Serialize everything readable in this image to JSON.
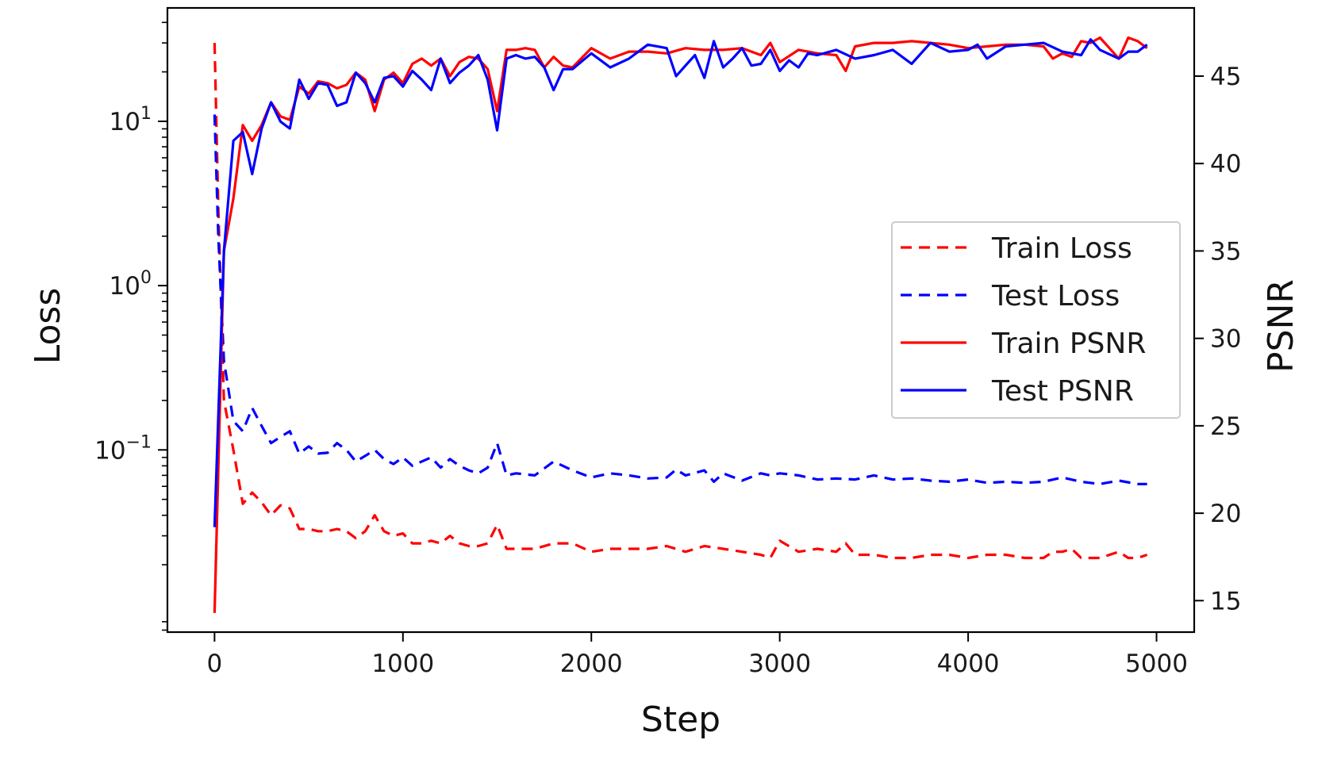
{
  "chart_data": {
    "type": "line",
    "title": "",
    "xlabel": "Step",
    "ylabel_left": "Loss",
    "ylabel_right": "PSNR",
    "xlim": [
      -250,
      5200
    ],
    "xticks": [
      0,
      1000,
      2000,
      3000,
      4000,
      5000
    ],
    "xtick_labels": [
      "0",
      "1000",
      "2000",
      "3000",
      "4000",
      "5000"
    ],
    "y_left_scale": "log",
    "y_left_lim": [
      0.00778,
      49.0
    ],
    "y_left_ticks": [
      0.1,
      1,
      10
    ],
    "y_left_tick_labels": [
      {
        "base": "10",
        "exp": "−1"
      },
      {
        "base": "10",
        "exp": "0"
      },
      {
        "base": "10",
        "exp": "1"
      }
    ],
    "y_right_lim": [
      13.2,
      48.9
    ],
    "y_right_ticks": [
      15,
      20,
      25,
      30,
      35,
      40,
      45
    ],
    "y_right_tick_labels": [
      "15",
      "20",
      "25",
      "30",
      "35",
      "40",
      "45"
    ],
    "grid": false,
    "legend_position": "center-right",
    "series": [
      {
        "name": "Train Loss",
        "axis": "left",
        "style": "dashed",
        "color": "#ff0000",
        "x": [
          0,
          20,
          50,
          100,
          150,
          200,
          250,
          300,
          350,
          400,
          450,
          500,
          550,
          600,
          650,
          700,
          750,
          800,
          850,
          900,
          950,
          1000,
          1050,
          1100,
          1150,
          1200,
          1250,
          1300,
          1350,
          1400,
          1450,
          1500,
          1550,
          1600,
          1700,
          1800,
          1900,
          2000,
          2100,
          2200,
          2300,
          2400,
          2500,
          2600,
          2700,
          2800,
          2900,
          2950,
          3000,
          3100,
          3200,
          3300,
          3350,
          3400,
          3500,
          3600,
          3700,
          3800,
          3900,
          4000,
          4100,
          4200,
          4300,
          4400,
          4450,
          4500,
          4550,
          4600,
          4700,
          4800,
          4850,
          4900,
          4950
        ],
        "y": [
          30,
          3.0,
          0.2,
          0.1,
          0.047,
          0.055,
          0.048,
          0.04,
          0.046,
          0.044,
          0.033,
          0.033,
          0.032,
          0.032,
          0.033,
          0.032,
          0.029,
          0.032,
          0.04,
          0.032,
          0.03,
          0.031,
          0.027,
          0.027,
          0.028,
          0.027,
          0.03,
          0.027,
          0.026,
          0.026,
          0.027,
          0.035,
          0.025,
          0.025,
          0.025,
          0.027,
          0.027,
          0.024,
          0.025,
          0.025,
          0.025,
          0.026,
          0.024,
          0.026,
          0.025,
          0.024,
          0.023,
          0.022,
          0.028,
          0.024,
          0.025,
          0.024,
          0.027,
          0.023,
          0.023,
          0.022,
          0.022,
          0.023,
          0.023,
          0.022,
          0.023,
          0.023,
          0.022,
          0.022,
          0.024,
          0.024,
          0.025,
          0.022,
          0.022,
          0.024,
          0.022,
          0.022,
          0.023
        ]
      },
      {
        "name": "Test Loss",
        "axis": "left",
        "style": "dashed",
        "color": "#0000ff",
        "x": [
          0,
          20,
          50,
          100,
          150,
          200,
          250,
          300,
          350,
          400,
          450,
          500,
          550,
          600,
          650,
          700,
          750,
          800,
          850,
          900,
          950,
          1000,
          1050,
          1100,
          1150,
          1200,
          1250,
          1300,
          1350,
          1400,
          1450,
          1500,
          1550,
          1600,
          1700,
          1800,
          1900,
          2000,
          2100,
          2200,
          2300,
          2400,
          2450,
          2500,
          2600,
          2650,
          2700,
          2800,
          2900,
          2950,
          3000,
          3100,
          3200,
          3300,
          3400,
          3500,
          3600,
          3700,
          3800,
          3900,
          4000,
          4100,
          4200,
          4300,
          4400,
          4500,
          4600,
          4700,
          4800,
          4900,
          4950
        ],
        "y": [
          11,
          2.0,
          0.35,
          0.15,
          0.13,
          0.18,
          0.14,
          0.11,
          0.12,
          0.13,
          0.095,
          0.105,
          0.095,
          0.096,
          0.11,
          0.1,
          0.085,
          0.092,
          0.1,
          0.088,
          0.082,
          0.09,
          0.08,
          0.085,
          0.09,
          0.078,
          0.088,
          0.08,
          0.075,
          0.072,
          0.078,
          0.11,
          0.07,
          0.072,
          0.07,
          0.085,
          0.075,
          0.068,
          0.072,
          0.07,
          0.067,
          0.068,
          0.076,
          0.07,
          0.075,
          0.064,
          0.072,
          0.065,
          0.072,
          0.07,
          0.072,
          0.07,
          0.066,
          0.067,
          0.066,
          0.07,
          0.066,
          0.067,
          0.065,
          0.064,
          0.066,
          0.063,
          0.064,
          0.063,
          0.064,
          0.068,
          0.064,
          0.062,
          0.065,
          0.062,
          0.062
        ]
      },
      {
        "name": "Train PSNR",
        "axis": "right",
        "style": "solid",
        "color": "#ff0000",
        "x": [
          0,
          50,
          100,
          150,
          200,
          250,
          300,
          350,
          400,
          450,
          500,
          550,
          600,
          650,
          700,
          750,
          800,
          850,
          900,
          950,
          1000,
          1050,
          1100,
          1150,
          1200,
          1250,
          1300,
          1350,
          1400,
          1450,
          1500,
          1550,
          1600,
          1650,
          1700,
          1750,
          1800,
          1850,
          1900,
          2000,
          2100,
          2200,
          2300,
          2400,
          2500,
          2600,
          2700,
          2800,
          2900,
          2950,
          3000,
          3100,
          3200,
          3300,
          3350,
          3400,
          3500,
          3600,
          3700,
          3800,
          3900,
          4000,
          4100,
          4200,
          4300,
          4400,
          4450,
          4500,
          4550,
          4600,
          4650,
          4700,
          4800,
          4850,
          4900,
          4950
        ],
        "y": [
          14.3,
          35.0,
          38.0,
          42.2,
          41.3,
          42.2,
          43.5,
          42.7,
          42.5,
          44.4,
          44.0,
          44.7,
          44.6,
          44.3,
          44.5,
          45.2,
          44.8,
          43.0,
          44.8,
          45.2,
          44.6,
          45.7,
          46.0,
          45.6,
          46.0,
          45.0,
          45.8,
          46.1,
          46.0,
          45.4,
          43.0,
          46.5,
          46.5,
          46.6,
          46.5,
          45.5,
          46.1,
          45.6,
          45.5,
          46.6,
          46.0,
          46.4,
          46.4,
          46.3,
          46.6,
          46.5,
          46.5,
          46.6,
          46.2,
          46.9,
          45.8,
          46.5,
          46.3,
          46.2,
          45.3,
          46.7,
          46.9,
          46.9,
          47.0,
          46.9,
          46.8,
          46.6,
          46.7,
          46.8,
          46.8,
          46.7,
          46.0,
          46.3,
          46.1,
          47.0,
          46.9,
          47.2,
          46.0,
          47.2,
          47.0,
          46.6
        ]
      },
      {
        "name": "Test PSNR",
        "axis": "right",
        "style": "solid",
        "color": "#0000ff",
        "x": [
          0,
          50,
          100,
          150,
          200,
          250,
          300,
          350,
          400,
          450,
          500,
          550,
          600,
          650,
          700,
          750,
          800,
          850,
          900,
          950,
          1000,
          1050,
          1100,
          1150,
          1200,
          1250,
          1300,
          1350,
          1400,
          1450,
          1500,
          1550,
          1600,
          1650,
          1700,
          1750,
          1800,
          1850,
          1900,
          2000,
          2100,
          2200,
          2300,
          2400,
          2450,
          2500,
          2550,
          2600,
          2650,
          2700,
          2750,
          2800,
          2850,
          2900,
          2950,
          3000,
          3050,
          3100,
          3150,
          3200,
          3300,
          3400,
          3500,
          3600,
          3700,
          3800,
          3900,
          4000,
          4050,
          4100,
          4200,
          4300,
          4400,
          4500,
          4600,
          4650,
          4700,
          4800,
          4850,
          4900,
          4950
        ],
        "y": [
          19.2,
          35.0,
          41.3,
          41.8,
          39.4,
          42.0,
          43.5,
          42.4,
          42.0,
          44.8,
          43.7,
          44.6,
          44.5,
          43.3,
          43.5,
          45.2,
          44.6,
          43.5,
          44.9,
          45.0,
          44.4,
          45.3,
          44.8,
          44.2,
          46.0,
          44.6,
          45.2,
          45.6,
          46.2,
          44.8,
          41.9,
          46.0,
          46.2,
          46.0,
          46.1,
          45.5,
          44.2,
          45.4,
          45.4,
          46.3,
          45.5,
          46.0,
          46.8,
          46.6,
          45.0,
          45.6,
          46.2,
          44.9,
          47.0,
          45.5,
          46.0,
          46.6,
          45.6,
          45.7,
          46.5,
          45.3,
          45.9,
          45.5,
          46.3,
          46.2,
          46.5,
          46.0,
          46.2,
          46.5,
          45.7,
          46.9,
          46.4,
          46.5,
          46.8,
          46.0,
          46.7,
          46.8,
          46.9,
          46.4,
          46.2,
          47.1,
          46.5,
          46.0,
          46.4,
          46.4,
          46.8
        ]
      }
    ]
  }
}
